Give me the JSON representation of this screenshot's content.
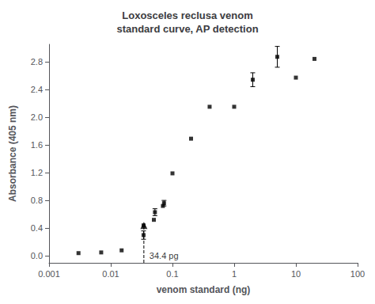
{
  "chart_data": {
    "type": "scatter",
    "title": "Loxosceles reclusa venom\nstandard curve, AP detection",
    "xlabel": "venom standard (ng)",
    "ylabel": "Absorbance (405 nm)",
    "log": "x",
    "grid": false,
    "color": "#000000",
    "xlim": [
      0.001,
      100
    ],
    "ylim": [
      -0.1,
      3.05
    ],
    "xticks": [
      0.001,
      0.01,
      0.1,
      1,
      10,
      100
    ],
    "yticks": [
      {
        "value": 0,
        "label": "0.0"
      },
      0.4,
      0.8,
      1.2,
      1.6,
      {
        "value": 2,
        "label": "2.0"
      },
      2.4,
      2.8
    ],
    "series": [
      {
        "type": "scatter",
        "marker": "square",
        "x": [
          0.003,
          0.007,
          0.015,
          0.034,
          0.034,
          0.05,
          0.052,
          0.07,
          0.073,
          0.1,
          0.2,
          0.4,
          1.0,
          2.0,
          5.0,
          10.0,
          20.0
        ],
        "values": [
          0.04,
          0.05,
          0.08,
          0.3,
          0.44,
          0.52,
          0.63,
          0.72,
          0.76,
          1.19,
          1.69,
          2.15,
          2.15,
          2.54,
          2.87,
          2.57,
          2.84
        ]
      },
      {
        "type": "errorbar",
        "x": [
          0.034,
          0.052,
          0.073,
          2.0,
          5.0
        ],
        "values": [
          0.3,
          0.63,
          0.76,
          2.54,
          2.87
        ],
        "yerr": [
          0.06,
          0.05,
          0.04,
          0.1,
          0.15
        ]
      },
      {
        "type": "scatter",
        "marker": "triangle",
        "x": [
          0.0344
        ],
        "values": [
          0.44
        ]
      },
      {
        "type": "line",
        "line_style": "dashed",
        "x": [
          0.0344,
          0.0344
        ],
        "values": [
          -0.1,
          0.44
        ]
      }
    ],
    "annotations": [
      {
        "text": "34.4 pg",
        "x": 0.0344
      }
    ]
  }
}
